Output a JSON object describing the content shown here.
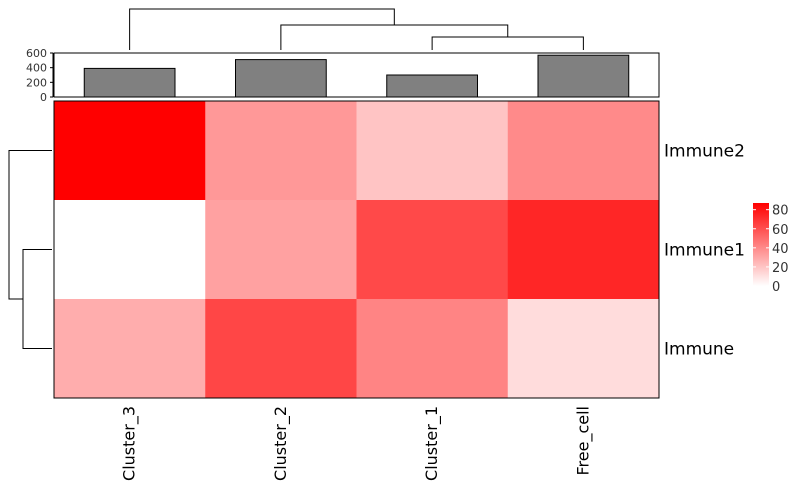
{
  "chart_data": {
    "type": "heatmap",
    "columns": [
      "Cluster_3",
      "Cluster_2",
      "Cluster_1",
      "Free_cell"
    ],
    "rows": [
      "Immune2",
      "Immune1",
      "Immune"
    ],
    "values": [
      [
        87,
        35,
        20,
        40
      ],
      [
        0,
        32,
        62,
        74
      ],
      [
        28,
        63,
        42,
        12
      ]
    ],
    "color_scale": {
      "low": "#ffffff",
      "high": "#ff0000",
      "min": 0,
      "max": 87
    },
    "legend": {
      "ticks": [
        80,
        60,
        40,
        20,
        0
      ],
      "placement": "right"
    },
    "top_bars": {
      "type": "bar",
      "categories": [
        "Cluster_3",
        "Cluster_2",
        "Cluster_1",
        "Free_cell"
      ],
      "values": [
        390,
        510,
        300,
        570
      ],
      "ylim": [
        0,
        600
      ],
      "yticks": [
        600,
        400,
        200,
        0
      ],
      "bar_color": "#808080"
    },
    "column_dendrogram": "((Cluster_3),(Cluster_2,(Cluster_1,Free_cell)))",
    "row_dendrogram": "(Immune2,(Immune1,Immune))"
  }
}
